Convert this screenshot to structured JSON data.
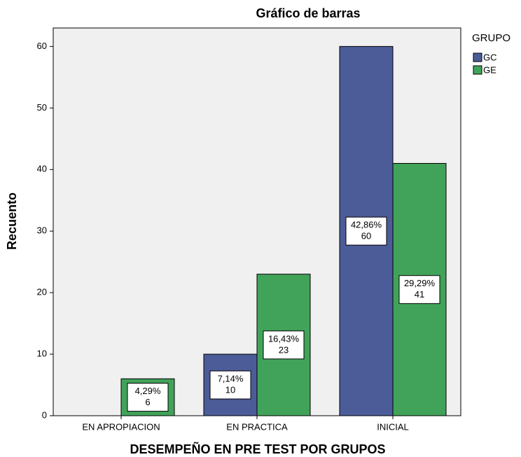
{
  "chart_data": {
    "type": "bar",
    "title": "Gráfico de barras",
    "x_label": "DESEMPEÑO EN PRE TEST POR GRUPOS",
    "y_label": "Recuento",
    "legend_title": "GRUPO",
    "legend": "right",
    "categories": [
      "EN APROPIACION",
      "EN PRACTICA",
      "INICIAL"
    ],
    "series": [
      {
        "name": "GC",
        "color": "#4c5c99",
        "values": [
          null,
          10,
          60
        ],
        "percents": [
          null,
          7.14,
          42.86
        ],
        "percent_labels": [
          null,
          "7,14%",
          "42,86%"
        ]
      },
      {
        "name": "GE",
        "color": "#41a35a",
        "values": [
          6,
          23,
          41
        ],
        "percents": [
          4.29,
          16.43,
          29.29
        ],
        "percent_labels": [
          "4,29%",
          "16,43%",
          "29,29%"
        ]
      }
    ],
    "ylim": [
      0,
      63
    ],
    "yticks": [
      0,
      10,
      20,
      30,
      40,
      50,
      60
    ],
    "grid": false
  }
}
